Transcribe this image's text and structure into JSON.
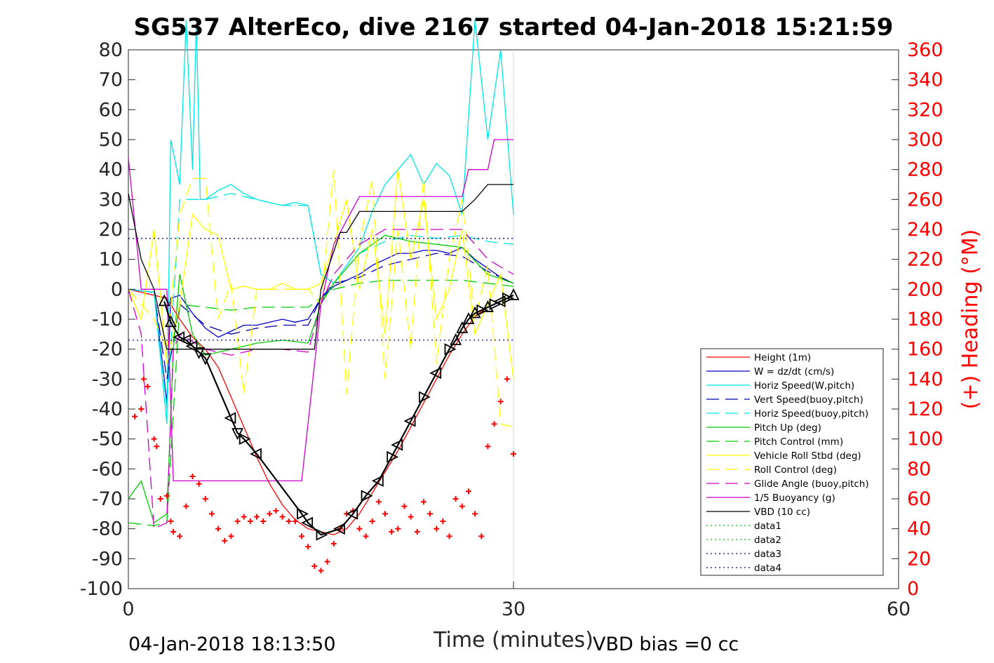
{
  "chart_data": {
    "type": "line",
    "title": "SG537 AlterEco, dive 2167 started 04-Jan-2018 15:21:59",
    "xlabel": "Time (minutes)",
    "ylabel": "",
    "y2label": "(+) Heading (°M)",
    "xlim": [
      0,
      60
    ],
    "ylim": [
      -100,
      80
    ],
    "y2lim": [
      0,
      360
    ],
    "xticks": [
      "0",
      "30",
      "60"
    ],
    "yticks": [
      "80",
      "70",
      "60",
      "50",
      "40",
      "30",
      "20",
      "10",
      "0",
      "-10",
      "-20",
      "-30",
      "-40",
      "-50",
      "-60",
      "-70",
      "-80",
      "-90",
      "-100"
    ],
    "y2ticks": [
      "360",
      "340",
      "320",
      "300",
      "280",
      "260",
      "240",
      "220",
      "200",
      "180",
      "160",
      "140",
      "120",
      "100",
      "80",
      "60",
      "40",
      "20",
      "0"
    ],
    "footer_left": "04-Jan-2018 18:13:50",
    "footer_right": "VBD bias =0 cc",
    "legend_position": "lower-right",
    "colors": {
      "height": "#ff0000",
      "w": "#0000cc",
      "horiz": "#00e5e5",
      "pitch": "#00cc00",
      "roll": "#ffff00",
      "glide": "#cc00cc",
      "buoy": "#cc00cc",
      "vbd": "#000000",
      "data": "#00cc00",
      "data_blue": "#0000aa",
      "heading": "#ff0000",
      "depth": "#000000"
    },
    "series": [
      {
        "name": "Height (1m)",
        "color": "#ff0000",
        "style": "solid",
        "x": [
          0,
          1,
          2,
          3,
          4,
          5,
          6,
          7,
          8,
          9,
          10,
          11,
          12,
          13,
          14,
          15,
          16,
          17,
          18,
          19,
          20,
          21,
          22,
          23,
          24,
          25,
          26,
          27,
          28,
          29,
          30
        ],
        "y": [
          0,
          -1,
          -2,
          -3,
          -10,
          -16,
          -20,
          -26,
          -36,
          -46,
          -56,
          -65,
          -72,
          -77,
          -80,
          -81,
          -82,
          -80,
          -75,
          -68,
          -61,
          -54,
          -46,
          -38,
          -30,
          -22,
          -15,
          -9,
          -6,
          -4,
          -2
        ]
      },
      {
        "name": "W = dz/dt (cm/s)",
        "color": "#0000cc",
        "style": "solid",
        "x": [
          0,
          2,
          2.8,
          3,
          3.3,
          4,
          5,
          6,
          7,
          8,
          9,
          10,
          11,
          12,
          13,
          14,
          15,
          16,
          17,
          18,
          19,
          20,
          21,
          22,
          23,
          24,
          25,
          26,
          27,
          28,
          29,
          30
        ],
        "y": [
          0,
          -1,
          -30,
          -38,
          -3,
          -2,
          -8,
          -13,
          -16,
          -14,
          -12,
          -12,
          -11,
          -10,
          -11,
          -10,
          -3,
          1,
          3,
          5,
          8,
          10,
          12,
          12,
          13,
          13,
          12,
          14,
          10,
          7,
          4,
          2
        ]
      },
      {
        "name": "Horiz Speed(W,pitch)",
        "color": "#00e5e5",
        "style": "solid",
        "x": [
          0,
          2,
          3,
          3.3,
          4,
          4.5,
          5,
          5.3,
          5.6,
          6,
          7,
          8,
          9,
          10,
          11,
          12,
          13,
          14,
          15,
          16,
          17,
          18,
          19,
          20,
          21,
          22,
          23,
          24,
          25,
          26,
          27,
          28,
          29,
          30
        ],
        "y": [
          0,
          -1,
          -45,
          50,
          35,
          90,
          40,
          90,
          30,
          30,
          33,
          35,
          32,
          30,
          29,
          28,
          29,
          28,
          5,
          2,
          8,
          14,
          26,
          35,
          40,
          45,
          35,
          42,
          38,
          25,
          90,
          50,
          80,
          25
        ]
      },
      {
        "name": "Vert Speed(buoy,pitch)",
        "color": "#0000aa",
        "style": "dashed",
        "x": [
          0,
          2,
          3,
          4,
          6,
          8,
          10,
          12,
          14,
          15,
          16,
          18,
          20,
          22,
          24,
          26,
          28,
          30
        ],
        "y": [
          0,
          -1,
          -30,
          -5,
          -12,
          -15,
          -13,
          -12,
          -12,
          -3,
          2,
          4,
          8,
          10,
          12,
          11,
          6,
          2
        ]
      },
      {
        "name": "Horiz Speed(buoy,pitch)",
        "color": "#00e5e5",
        "style": "dashed",
        "x": [
          0,
          2,
          3,
          4,
          6,
          8,
          10,
          12,
          14,
          15,
          16,
          18,
          20,
          22,
          24,
          26,
          28,
          30
        ],
        "y": [
          0,
          -1,
          -40,
          30,
          30,
          32,
          30,
          28,
          28,
          5,
          2,
          12,
          16,
          18,
          17,
          18,
          16,
          15
        ]
      },
      {
        "name": "Pitch Up (deg)",
        "color": "#00cc00",
        "style": "solid",
        "x": [
          0,
          1,
          2,
          3,
          3.5,
          4,
          5,
          6,
          8,
          10,
          12,
          14,
          15,
          16,
          18,
          20,
          22,
          24,
          26,
          28,
          30
        ],
        "y": [
          -70,
          -64,
          -78,
          -75,
          -20,
          5,
          -15,
          -22,
          -20,
          -18,
          -17,
          -18,
          -5,
          2,
          12,
          18,
          16,
          15,
          14,
          5,
          2
        ]
      },
      {
        "name": "Pitch Control (mm)",
        "color": "#00cc00",
        "style": "dashed",
        "x": [
          0,
          2,
          3,
          4,
          6,
          8,
          10,
          12,
          14,
          15,
          16,
          18,
          20,
          22,
          24,
          26,
          28,
          30
        ],
        "y": [
          -78,
          -79,
          -78,
          -5,
          -6,
          -7,
          -6,
          -6,
          -6,
          -3,
          0,
          2,
          3,
          3,
          3,
          3,
          2,
          1
        ]
      },
      {
        "name": "Vehicle Roll Stbd (deg)",
        "color": "#ffff00",
        "style": "solid",
        "x": [
          0,
          1,
          2,
          3,
          4,
          5,
          6,
          7,
          8,
          9,
          10,
          11,
          12,
          13,
          14,
          15,
          16,
          17,
          18,
          19,
          20,
          21,
          22,
          23,
          24,
          25,
          26,
          27,
          28,
          29,
          30
        ],
        "y": [
          0,
          -10,
          20,
          -25,
          -5,
          25,
          20,
          18,
          0,
          1,
          0,
          0,
          2,
          0,
          0,
          2,
          15,
          30,
          0,
          20,
          -15,
          40,
          10,
          30,
          -10,
          0,
          20,
          -15,
          -5,
          5,
          -30
        ]
      },
      {
        "name": "Roll Control (deg)",
        "color": "#ffff00",
        "style": "dashed",
        "x": [
          0,
          2,
          3,
          4,
          5,
          6,
          7,
          8,
          9,
          10,
          12,
          14,
          15,
          16,
          17,
          18,
          19,
          20,
          21,
          22,
          23,
          24,
          25,
          26,
          27,
          28,
          29,
          30
        ],
        "y": [
          0,
          -10,
          -20,
          25,
          37,
          37,
          -10,
          2,
          -35,
          0,
          0,
          0,
          -5,
          40,
          -35,
          15,
          37,
          -30,
          20,
          -20,
          37,
          -25,
          10,
          30,
          -10,
          8,
          -45,
          -46
        ]
      },
      {
        "name": "Glide Angle (buoy,pitch)",
        "color": "#cc00cc",
        "style": "dashed",
        "x": [
          0,
          1,
          2,
          3,
          3.5,
          4,
          6,
          8,
          10,
          12,
          14,
          15,
          16,
          18,
          20,
          22,
          24,
          26,
          28,
          30
        ],
        "y": [
          0,
          -15,
          -80,
          -78,
          -20,
          -15,
          -20,
          -22,
          -20,
          -20,
          -21,
          -5,
          5,
          15,
          20,
          20,
          20,
          20,
          10,
          5
        ]
      },
      {
        "name": "1/5 Buoyancy (g)",
        "color": "#cc00cc",
        "style": "solid",
        "x": [
          0,
          1,
          2,
          3,
          3.5,
          4.5,
          13.5,
          14.5,
          15,
          16,
          18,
          19,
          26,
          26.5,
          28,
          28.5,
          30
        ],
        "y": [
          44,
          0,
          0,
          0,
          -64,
          -64,
          -64,
          -25,
          -5,
          15,
          31,
          31,
          31,
          40,
          40,
          50,
          50
        ]
      },
      {
        "name": "VBD (10 cc)",
        "color": "#000000",
        "style": "solid",
        "x": [
          0,
          1,
          2,
          3,
          14.5,
          15,
          16.5,
          17,
          18,
          26,
          27,
          28,
          28.5,
          30
        ],
        "y": [
          32,
          10,
          0,
          -20,
          -20,
          0,
          19,
          19,
          26,
          26,
          30,
          35,
          35,
          35
        ]
      },
      {
        "name": "data1",
        "color": "#00cc00",
        "style": "dotted",
        "x": [],
        "y": []
      },
      {
        "name": "data2",
        "color": "#00cc00",
        "style": "dotted",
        "x": [],
        "y": []
      },
      {
        "name": "data3",
        "color": "#0000aa",
        "style": "dotted",
        "x": [
          0,
          30
        ],
        "y": [
          17,
          17
        ]
      },
      {
        "name": "data4",
        "color": "#0000aa",
        "style": "dotted",
        "x": [
          0,
          30
        ],
        "y": [
          -17,
          -17
        ]
      }
    ],
    "depth_markers": {
      "color": "#000000",
      "x": [
        2.8,
        3.3,
        4.0,
        4.5,
        5.0,
        5.5,
        6.0,
        8.0,
        8.5,
        9.0,
        10.0,
        13.5,
        14.0,
        15.0,
        16.5,
        17.5,
        18.5,
        19.5,
        20.5,
        21.0,
        22.0,
        23.0,
        24.0,
        25.0,
        25.5,
        26.0,
        26.5,
        27.0,
        27.5,
        28.0,
        28.5,
        29.0,
        29.5,
        30.0
      ],
      "y": [
        -4,
        -11,
        -16,
        -17,
        -19,
        -21,
        -23,
        -43,
        -48,
        -50,
        -55,
        -75,
        -78,
        -82,
        -80,
        -75,
        -69,
        -64,
        -56,
        -52,
        -44,
        -36,
        -28,
        -20,
        -17,
        -13,
        -10,
        -8,
        -7,
        -6,
        -5,
        -4,
        -3,
        -2
      ],
      "direction": [
        "up",
        "up",
        "left",
        "left",
        "left",
        "down",
        "down",
        "left",
        "down",
        "right",
        "left",
        "right",
        "left",
        "right",
        "left",
        "left",
        "right",
        "left",
        "right",
        "left",
        "left",
        "right",
        "left",
        "right",
        "up",
        "up",
        "up",
        "up",
        "right",
        "up",
        "right",
        "left",
        "right",
        "up"
      ]
    },
    "heading_points": {
      "color": "#ff0000",
      "x": [
        0.5,
        1,
        1.2,
        1.5,
        2,
        2.2,
        2.5,
        3,
        3.3,
        3.5,
        4,
        4.5,
        5,
        5.5,
        6,
        6.5,
        7,
        7.5,
        8,
        8.5,
        9,
        9.5,
        10,
        10.5,
        11,
        11.5,
        12,
        12.5,
        13,
        13.5,
        14,
        14.5,
        15,
        15.5,
        16,
        16.5,
        17,
        17.5,
        18,
        18.5,
        19,
        19.5,
        20,
        20.5,
        21,
        21.5,
        22,
        22.5,
        23,
        23.5,
        24,
        24.5,
        25,
        25.5,
        26,
        26.5,
        27,
        27.5,
        28,
        28.5,
        29,
        29.5,
        30
      ],
      "y": [
        115,
        120,
        140,
        135,
        100,
        95,
        60,
        62,
        45,
        38,
        35,
        55,
        75,
        70,
        60,
        50,
        40,
        32,
        35,
        45,
        48,
        45,
        48,
        45,
        50,
        52,
        48,
        45,
        45,
        35,
        28,
        15,
        12,
        18,
        30,
        40,
        50,
        52,
        40,
        35,
        45,
        58,
        50,
        38,
        40,
        55,
        48,
        38,
        58,
        50,
        40,
        45,
        35,
        60,
        55,
        65,
        50,
        35,
        95,
        110,
        125,
        140,
        90
      ]
    }
  }
}
